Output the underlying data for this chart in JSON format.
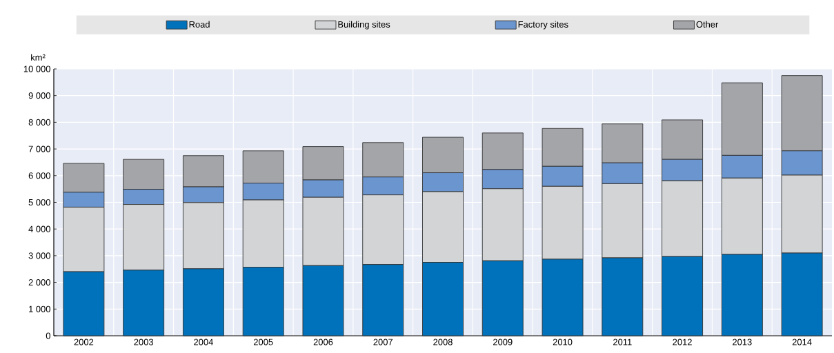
{
  "chart_data": {
    "type": "bar",
    "stacked": true,
    "ylabel": "km²",
    "categories": [
      "2002",
      "2003",
      "2004",
      "2005",
      "2006",
      "2007",
      "2008",
      "2009",
      "2010",
      "2011",
      "2012",
      "2013",
      "2014"
    ],
    "series": [
      {
        "name": "Road",
        "color": "#0072bb",
        "values": [
          2400,
          2460,
          2510,
          2570,
          2630,
          2670,
          2750,
          2810,
          2870,
          2920,
          2970,
          3050,
          3100
        ]
      },
      {
        "name": "Building sites",
        "color": "#d3d4d6",
        "values": [
          2420,
          2460,
          2480,
          2520,
          2560,
          2610,
          2650,
          2700,
          2730,
          2780,
          2840,
          2860,
          2920
        ]
      },
      {
        "name": "Factory sites",
        "color": "#6a95cf",
        "values": [
          560,
          570,
          590,
          630,
          650,
          670,
          710,
          720,
          750,
          780,
          800,
          850,
          910
        ]
      },
      {
        "name": "Other",
        "color": "#a4a5a9",
        "values": [
          1080,
          1120,
          1170,
          1210,
          1250,
          1290,
          1330,
          1370,
          1420,
          1460,
          1480,
          2720,
          2820
        ]
      }
    ],
    "ylim": [
      0,
      10000
    ],
    "yticks": [
      0,
      {
        "value": 1000,
        "label": "1 000"
      },
      {
        "value": 2000,
        "label": "2 000"
      },
      {
        "value": 3000,
        "label": "3 000"
      },
      {
        "value": 4000,
        "label": "4 000"
      },
      {
        "value": 5000,
        "label": "5 000"
      },
      {
        "value": 6000,
        "label": "6 000"
      },
      {
        "value": 7000,
        "label": "7 000"
      },
      {
        "value": 8000,
        "label": "8 000"
      },
      {
        "value": 9000,
        "label": "9 000"
      },
      {
        "value": 10000,
        "label": "10 000"
      }
    ],
    "grid": true,
    "legend": "top"
  }
}
